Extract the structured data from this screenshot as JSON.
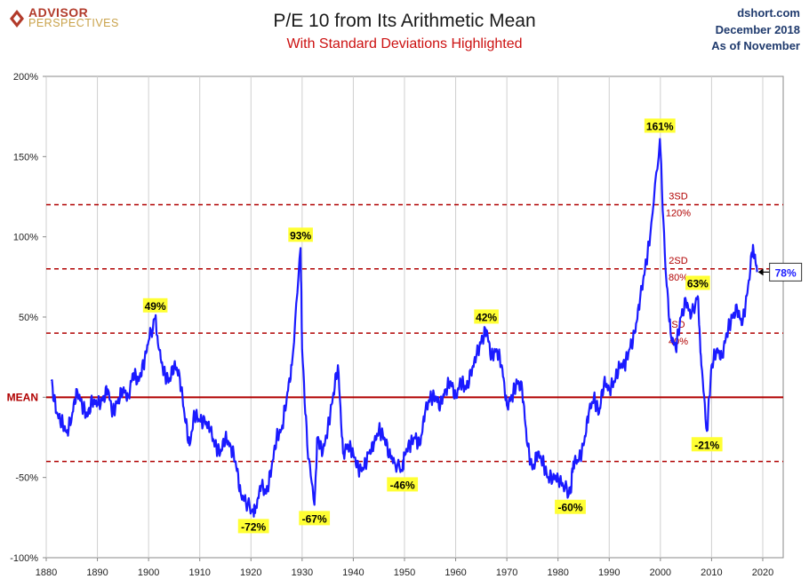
{
  "header": {
    "logo_line1": "ADVISOR",
    "logo_line2": "PERSPECTIVES",
    "title": "P/E 10 from Its Arithmetic Mean",
    "subtitle": "With Standard Deviations Highlighted",
    "source": "dshort.com",
    "date": "December 2018",
    "as_of": "As of November"
  },
  "colors": {
    "series": "#1a1aff",
    "mean_line": "#b00000",
    "sd_line": "#b00000",
    "label_bg": "#ffff33",
    "brand": "#b23a2a"
  },
  "chart_data": {
    "type": "line",
    "xlim": [
      1880,
      2024
    ],
    "ylim": [
      -100,
      200
    ],
    "x_ticks": [
      "1880",
      "1890",
      "1900",
      "1910",
      "1920",
      "1930",
      "1940",
      "1950",
      "1960",
      "1970",
      "1980",
      "1990",
      "2000",
      "2010",
      "2020"
    ],
    "y_ticks": [
      {
        "value": 200,
        "label": "200%"
      },
      {
        "value": 150,
        "label": "150%"
      },
      {
        "value": 100,
        "label": "100%"
      },
      {
        "value": 50,
        "label": "50%"
      },
      {
        "value": 0,
        "label": "MEAN"
      },
      {
        "value": -50,
        "label": "-50%"
      },
      {
        "value": -100,
        "label": "-100%"
      }
    ],
    "grid": "vertical",
    "mean": {
      "value": 0,
      "label": "MEAN"
    },
    "sd_lines": [
      {
        "value": 120,
        "label1": "3SD",
        "label2": "120%"
      },
      {
        "value": 80,
        "label1": "2SD",
        "label2": "80%"
      },
      {
        "value": 40,
        "label1": "SD",
        "label2": "40%"
      },
      {
        "value": -40,
        "label1": "",
        "label2": ""
      }
    ],
    "annotations": [
      {
        "x": 1901.3,
        "y": 49,
        "text": "49%",
        "pos": "above"
      },
      {
        "x": 1920.5,
        "y": -72,
        "text": "-72%",
        "pos": "below"
      },
      {
        "x": 1929.7,
        "y": 93,
        "text": "93%",
        "pos": "above"
      },
      {
        "x": 1932.4,
        "y": -67,
        "text": "-67%",
        "pos": "below"
      },
      {
        "x": 1949.6,
        "y": -46,
        "text": "-46%",
        "pos": "below"
      },
      {
        "x": 1966.0,
        "y": 42,
        "text": "42%",
        "pos": "above"
      },
      {
        "x": 1982.4,
        "y": -60,
        "text": "-60%",
        "pos": "below"
      },
      {
        "x": 1999.9,
        "y": 161,
        "text": "161%",
        "pos": "above"
      },
      {
        "x": 2007.3,
        "y": 63,
        "text": "63%",
        "pos": "above"
      },
      {
        "x": 2009.1,
        "y": -21,
        "text": "-21%",
        "pos": "below"
      }
    ],
    "last_value": {
      "x": 2018.9,
      "y": 78,
      "text": "78%"
    },
    "series": [
      {
        "x": [
          1881,
          1882,
          1883,
          1884,
          1885,
          1886,
          1887,
          1888,
          1889,
          1890,
          1891,
          1892,
          1893,
          1894,
          1895,
          1896,
          1897,
          1898,
          1899,
          1900,
          1901.3,
          1902,
          1903,
          1904,
          1905,
          1906,
          1907,
          1908,
          1909,
          1910,
          1911,
          1912,
          1913,
          1914,
          1915,
          1916,
          1917,
          1918,
          1919,
          1920.5,
          1921,
          1922,
          1923,
          1924,
          1925,
          1926,
          1927,
          1928,
          1929.7,
          1930,
          1931,
          1932.4,
          1933,
          1934,
          1935,
          1936,
          1937,
          1938,
          1939,
          1940,
          1941,
          1942,
          1943,
          1944,
          1945,
          1946,
          1947,
          1948,
          1949.6,
          1950,
          1951,
          1952,
          1953,
          1954,
          1955,
          1956,
          1957,
          1958,
          1959,
          1960,
          1961,
          1962,
          1963,
          1964,
          1965,
          1966,
          1967,
          1968,
          1969,
          1970,
          1971,
          1972,
          1973,
          1974,
          1975,
          1976,
          1977,
          1978,
          1979,
          1980,
          1981,
          1982.4,
          1983,
          1984,
          1985,
          1986,
          1987,
          1988,
          1989,
          1990,
          1991,
          1992,
          1993,
          1994,
          1995,
          1996,
          1997,
          1998,
          1999.9,
          2001,
          2002,
          2003,
          2004,
          2005,
          2006,
          2007.3,
          2008,
          2009.1,
          2010,
          2011,
          2012,
          2013,
          2014,
          2015,
          2016,
          2017,
          2018.1,
          2018.9
        ],
        "y": [
          10,
          -10,
          -15,
          -22,
          -12,
          5,
          -5,
          -12,
          -2,
          -5,
          -2,
          5,
          -10,
          -2,
          5,
          0,
          15,
          10,
          20,
          35,
          49,
          30,
          15,
          10,
          20,
          15,
          -10,
          -30,
          -10,
          -15,
          -15,
          -20,
          -30,
          -35,
          -25,
          -30,
          -40,
          -60,
          -65,
          -72,
          -68,
          -55,
          -60,
          -45,
          -25,
          -20,
          0,
          20,
          93,
          30,
          -30,
          -67,
          -25,
          -35,
          -20,
          0,
          20,
          -35,
          -30,
          -35,
          -45,
          -45,
          -35,
          -30,
          -20,
          -25,
          -35,
          -40,
          -46,
          -35,
          -30,
          -25,
          -30,
          -10,
          0,
          0,
          -5,
          5,
          10,
          0,
          10,
          5,
          15,
          25,
          35,
          42,
          25,
          30,
          20,
          -5,
          0,
          10,
          5,
          -30,
          -45,
          -35,
          -40,
          -50,
          -50,
          -50,
          -55,
          -60,
          -40,
          -40,
          -30,
          -10,
          0,
          -10,
          10,
          5,
          10,
          20,
          20,
          30,
          40,
          60,
          80,
          100,
          161,
          80,
          40,
          30,
          50,
          60,
          50,
          63,
          20,
          -21,
          20,
          30,
          25,
          40,
          50,
          55,
          45,
          65,
          95,
          78
        ]
      }
    ]
  }
}
